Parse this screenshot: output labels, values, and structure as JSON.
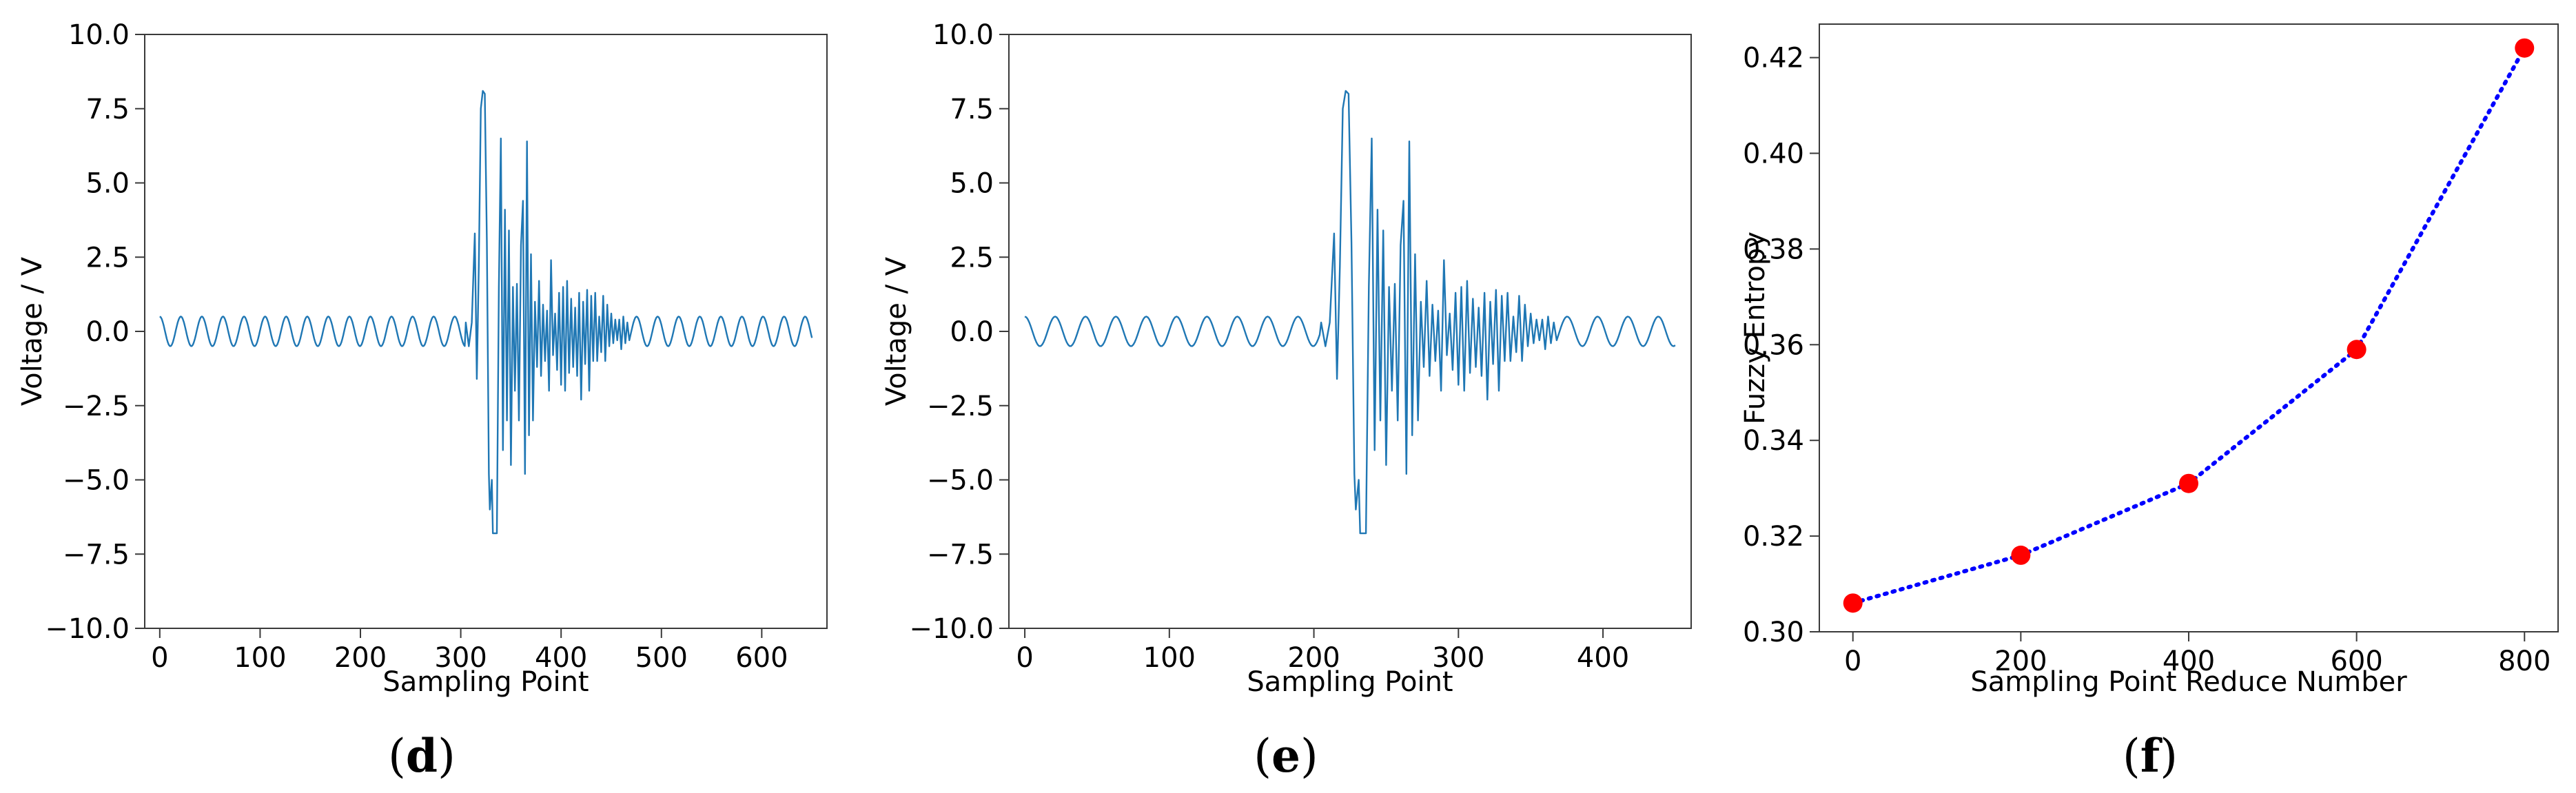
{
  "chart_data": [
    {
      "type": "line",
      "panel": "d",
      "xlabel": "Sampling Point",
      "ylabel": "Voltage / V",
      "xlim": [
        -15,
        665
      ],
      "ylim": [
        -10,
        10
      ],
      "xticks": [
        0,
        100,
        200,
        300,
        400,
        500,
        600
      ],
      "yticks": [
        -10.0,
        -7.5,
        -5.0,
        -2.5,
        0.0,
        2.5,
        5.0,
        7.5,
        10.0
      ],
      "xtick_labels": [
        "0",
        "100",
        "200",
        "300",
        "400",
        "500",
        "600"
      ],
      "ytick_labels": [
        "−10.0",
        "−7.5",
        "−5.0",
        "−2.5",
        "0.0",
        "2.5",
        "5.0",
        "7.5",
        "10.0"
      ],
      "grid": false,
      "line_color": "#1f77b4",
      "series": [
        {
          "x_start": 0,
          "x_step": 1,
          "pre_burst": {
            "x_range": [
              0,
              305
            ],
            "amplitude": 0.5,
            "period": 21
          },
          "post_burst": {
            "x_range": [
              470,
              650
            ],
            "amplitude": 0.5,
            "period": 21
          },
          "values": [
            [
              305,
              0.3
            ],
            [
              308,
              -0.5
            ],
            [
              311,
              0.3
            ],
            [
              314,
              3.3
            ],
            [
              316,
              -1.6
            ],
            [
              318,
              2.2
            ],
            [
              320,
              7.5
            ],
            [
              322,
              8.1
            ],
            [
              324,
              8.0
            ],
            [
              326,
              3.0
            ],
            [
              328,
              -4.8
            ],
            [
              329,
              -6.0
            ],
            [
              331,
              -5.0
            ],
            [
              332,
              -6.8
            ],
            [
              336,
              -6.8
            ],
            [
              338,
              1.5
            ],
            [
              340,
              6.5
            ],
            [
              342,
              -4.0
            ],
            [
              344,
              4.1
            ],
            [
              346,
              -3.0
            ],
            [
              348,
              3.4
            ],
            [
              350,
              -4.5
            ],
            [
              352,
              1.5
            ],
            [
              354,
              -2.0
            ],
            [
              356,
              1.6
            ],
            [
              358,
              -3.0
            ],
            [
              360,
              2.9
            ],
            [
              362,
              4.4
            ],
            [
              364,
              -4.8
            ],
            [
              366,
              6.4
            ],
            [
              368,
              -3.5
            ],
            [
              370,
              2.6
            ],
            [
              372,
              -3.0
            ],
            [
              374,
              1.0
            ],
            [
              376,
              -1.2
            ],
            [
              378,
              1.7
            ],
            [
              380,
              -1.5
            ],
            [
              382,
              0.9
            ],
            [
              384,
              -1.0
            ],
            [
              386,
              0.7
            ],
            [
              388,
              -2.0
            ],
            [
              390,
              2.4
            ],
            [
              392,
              -0.8
            ],
            [
              394,
              0.6
            ],
            [
              396,
              -1.3
            ],
            [
              398,
              1.3
            ],
            [
              400,
              -1.8
            ],
            [
              402,
              1.5
            ],
            [
              404,
              -2.0
            ],
            [
              406,
              1.7
            ],
            [
              408,
              -1.4
            ],
            [
              410,
              1.1
            ],
            [
              412,
              -1.2
            ],
            [
              414,
              0.8
            ],
            [
              416,
              -1.5
            ],
            [
              418,
              1.3
            ],
            [
              420,
              -2.3
            ],
            [
              422,
              1.0
            ],
            [
              424,
              -1.1
            ],
            [
              426,
              1.4
            ],
            [
              428,
              -2.0
            ],
            [
              430,
              1.2
            ],
            [
              432,
              -1.0
            ],
            [
              434,
              1.3
            ],
            [
              436,
              -1.0
            ],
            [
              438,
              0.5
            ],
            [
              440,
              -0.7
            ],
            [
              442,
              1.2
            ],
            [
              444,
              -1.0
            ],
            [
              446,
              0.9
            ],
            [
              448,
              -0.5
            ],
            [
              450,
              0.6
            ],
            [
              452,
              -0.4
            ],
            [
              454,
              0.4
            ],
            [
              456,
              -0.3
            ],
            [
              458,
              0.4
            ],
            [
              460,
              -0.6
            ],
            [
              462,
              0.5
            ],
            [
              464,
              -0.4
            ],
            [
              466,
              0.3
            ],
            [
              468,
              -0.3
            ],
            [
              470,
              0.0
            ]
          ]
        }
      ]
    },
    {
      "type": "line",
      "panel": "e",
      "xlabel": "Sampling Point",
      "ylabel": "Voltage / V",
      "xlim": [
        -11,
        461
      ],
      "ylim": [
        -10,
        10
      ],
      "xticks": [
        0,
        100,
        200,
        300,
        400
      ],
      "yticks": [
        -10.0,
        -7.5,
        -5.0,
        -2.5,
        0.0,
        2.5,
        5.0,
        7.5,
        10.0
      ],
      "xtick_labels": [
        "0",
        "100",
        "200",
        "300",
        "400"
      ],
      "ytick_labels": [
        "−10.0",
        "−7.5",
        "−5.0",
        "−2.5",
        "0.0",
        "2.5",
        "5.0",
        "7.5",
        "10.0"
      ],
      "grid": false,
      "line_color": "#1f77b4",
      "series": [
        {
          "x_start": 0,
          "x_step": 1,
          "pre_burst": {
            "x_range": [
              0,
              205
            ],
            "amplitude": 0.5,
            "period": 21
          },
          "post_burst": {
            "x_range": [
              370,
              450
            ],
            "amplitude": 0.5,
            "period": 21
          },
          "values": [
            [
              205,
              0.3
            ],
            [
              208,
              -0.5
            ],
            [
              211,
              0.3
            ],
            [
              214,
              3.3
            ],
            [
              216,
              -1.6
            ],
            [
              218,
              2.2
            ],
            [
              220,
              7.5
            ],
            [
              222,
              8.1
            ],
            [
              224,
              8.0
            ],
            [
              226,
              3.0
            ],
            [
              228,
              -4.8
            ],
            [
              229,
              -6.0
            ],
            [
              231,
              -5.0
            ],
            [
              232,
              -6.8
            ],
            [
              236,
              -6.8
            ],
            [
              238,
              1.5
            ],
            [
              240,
              6.5
            ],
            [
              242,
              -4.0
            ],
            [
              244,
              4.1
            ],
            [
              246,
              -3.0
            ],
            [
              248,
              3.4
            ],
            [
              250,
              -4.5
            ],
            [
              252,
              1.5
            ],
            [
              254,
              -2.0
            ],
            [
              256,
              1.6
            ],
            [
              258,
              -3.0
            ],
            [
              260,
              2.9
            ],
            [
              262,
              4.4
            ],
            [
              264,
              -4.8
            ],
            [
              266,
              6.4
            ],
            [
              268,
              -3.5
            ],
            [
              270,
              2.6
            ],
            [
              272,
              -3.0
            ],
            [
              274,
              1.0
            ],
            [
              276,
              -1.2
            ],
            [
              278,
              1.7
            ],
            [
              280,
              -1.5
            ],
            [
              282,
              0.9
            ],
            [
              284,
              -1.0
            ],
            [
              286,
              0.7
            ],
            [
              288,
              -2.0
            ],
            [
              290,
              2.4
            ],
            [
              292,
              -0.8
            ],
            [
              294,
              0.6
            ],
            [
              296,
              -1.3
            ],
            [
              298,
              1.3
            ],
            [
              300,
              -1.8
            ],
            [
              302,
              1.5
            ],
            [
              304,
              -2.0
            ],
            [
              306,
              1.7
            ],
            [
              308,
              -1.4
            ],
            [
              310,
              1.1
            ],
            [
              312,
              -1.2
            ],
            [
              314,
              0.8
            ],
            [
              316,
              -1.5
            ],
            [
              318,
              1.3
            ],
            [
              320,
              -2.3
            ],
            [
              322,
              1.0
            ],
            [
              324,
              -1.1
            ],
            [
              326,
              1.4
            ],
            [
              328,
              -2.0
            ],
            [
              330,
              1.2
            ],
            [
              332,
              -1.0
            ],
            [
              334,
              1.3
            ],
            [
              336,
              -1.0
            ],
            [
              338,
              0.5
            ],
            [
              340,
              -0.7
            ],
            [
              342,
              1.2
            ],
            [
              344,
              -1.0
            ],
            [
              346,
              0.9
            ],
            [
              348,
              -0.5
            ],
            [
              350,
              0.6
            ],
            [
              352,
              -0.4
            ],
            [
              354,
              0.4
            ],
            [
              356,
              -0.3
            ],
            [
              358,
              0.4
            ],
            [
              360,
              -0.6
            ],
            [
              362,
              0.5
            ],
            [
              364,
              -0.4
            ],
            [
              366,
              0.3
            ],
            [
              368,
              -0.3
            ],
            [
              370,
              0.0
            ]
          ]
        }
      ]
    },
    {
      "type": "scatter",
      "panel": "f",
      "xlabel": "Sampling Point Reduce Number",
      "ylabel": "Fuzzy Entropy",
      "xlim": [
        -40,
        840
      ],
      "ylim": [
        0.3,
        0.427
      ],
      "xticks": [
        0,
        200,
        400,
        600,
        800
      ],
      "yticks": [
        0.3,
        0.32,
        0.34,
        0.36,
        0.38,
        0.4,
        0.42
      ],
      "xtick_labels": [
        "0",
        "200",
        "400",
        "600",
        "800"
      ],
      "ytick_labels": [
        "0.30",
        "0.32",
        "0.34",
        "0.36",
        "0.38",
        "0.40",
        "0.42"
      ],
      "grid": false,
      "marker_color": "#ff0000",
      "line_color": "#0000ff",
      "line_style": "dotted",
      "series": [
        {
          "x": [
            0,
            200,
            400,
            600,
            800
          ],
          "values": [
            0.306,
            0.316,
            0.331,
            0.359,
            0.422
          ]
        }
      ]
    }
  ],
  "panels": {
    "d": {
      "label": "d"
    },
    "e": {
      "label": "e"
    },
    "f": {
      "label": "f"
    }
  }
}
